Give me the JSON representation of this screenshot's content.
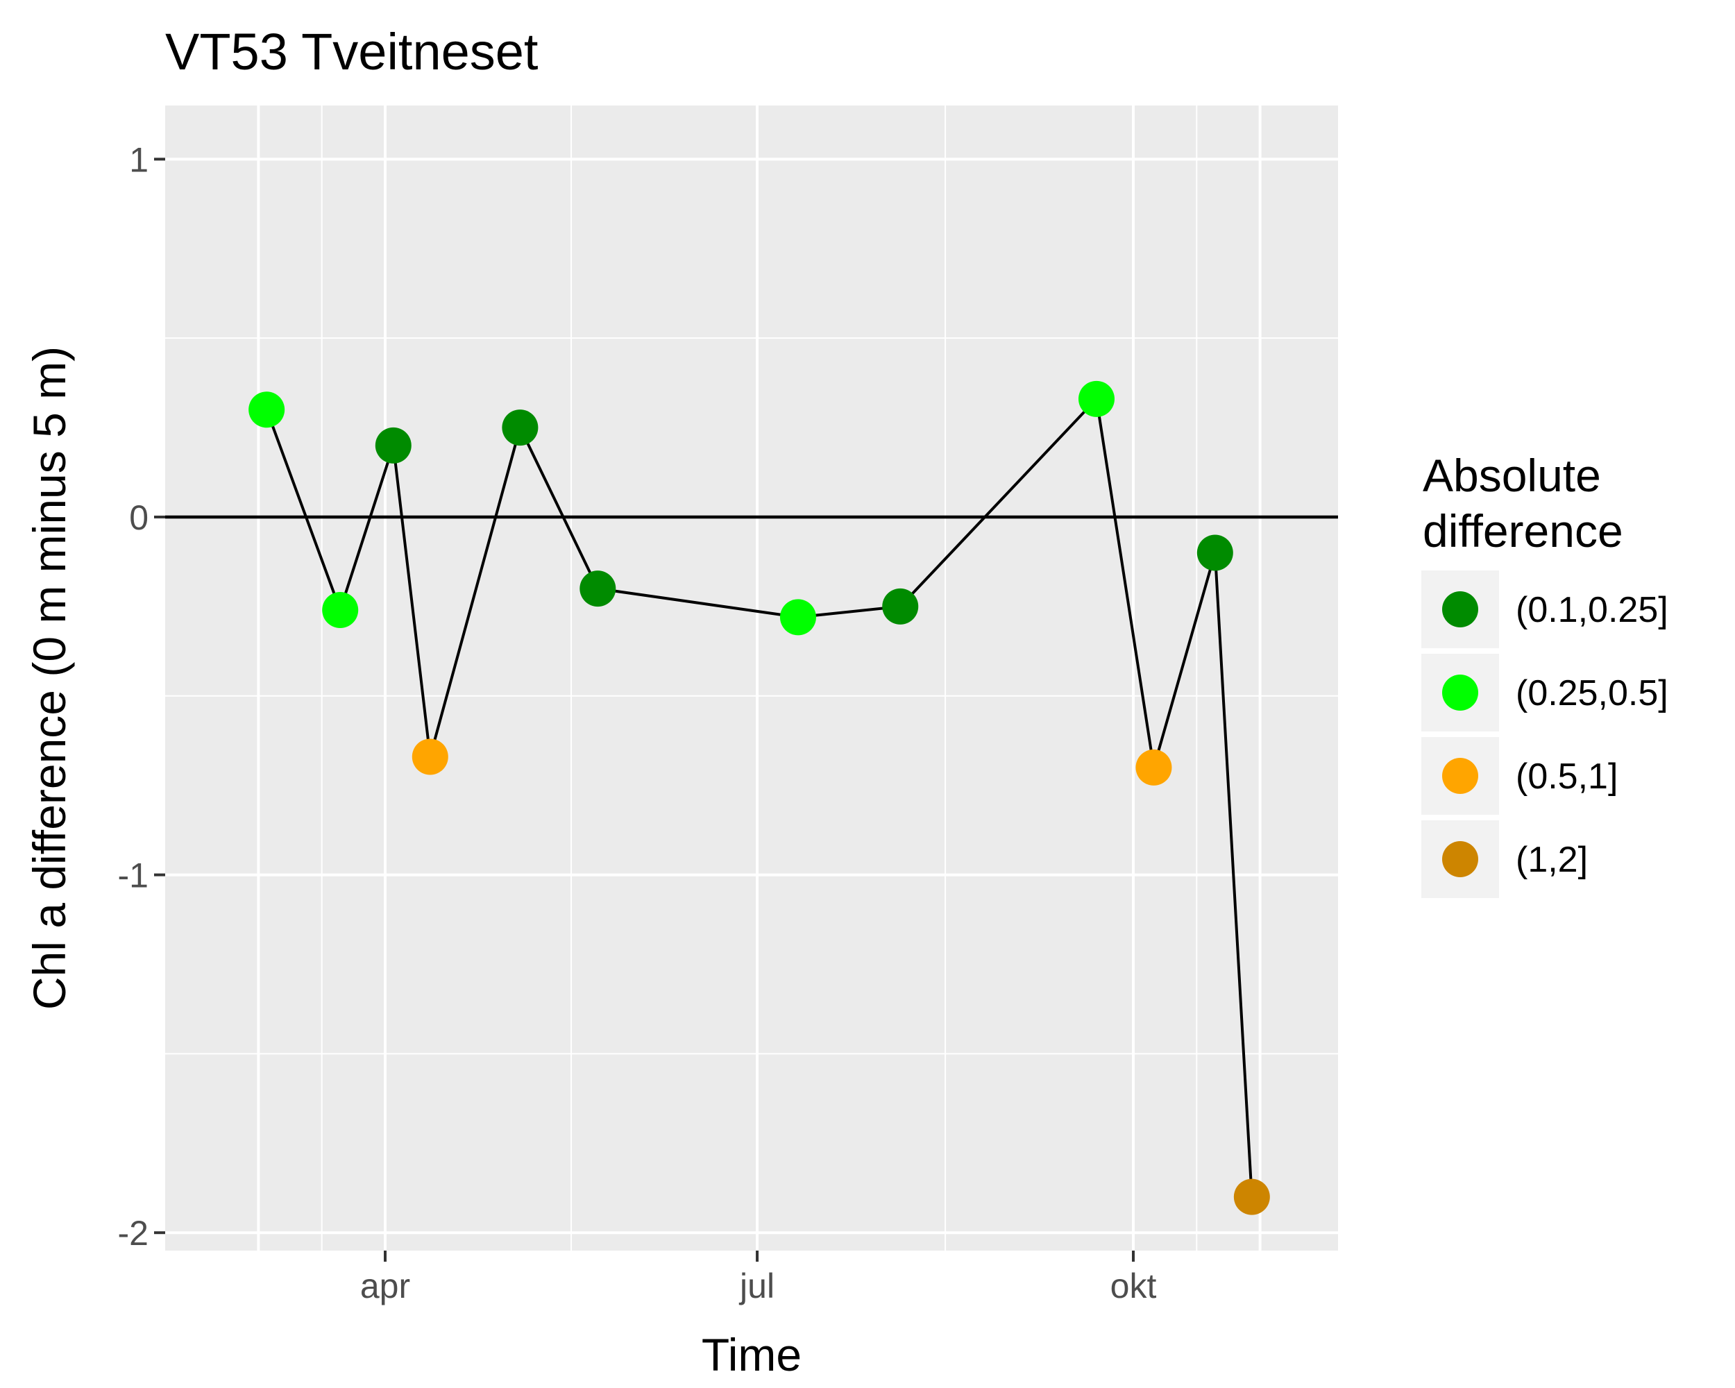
{
  "chart_data": {
    "type": "scatter",
    "title": "VT53 Tveitneset",
    "xlabel": "Time",
    "ylabel": "Chl a difference (0 m minus 5 m)",
    "x_ticks": [
      "apr",
      "jul",
      "okt"
    ],
    "x_tick_dates": [
      "2000-04-01",
      "2000-07-01",
      "2000-10-01"
    ],
    "ylim": [
      -2.05,
      1.15
    ],
    "y_ticks": [
      -2,
      -1,
      0,
      1
    ],
    "y_tick_labels": [
      "-2",
      "-1",
      "0",
      "1"
    ],
    "reference_line_y": 0,
    "grid": true,
    "connected": true,
    "legend": {
      "title_lines": [
        "Absolute",
        "difference"
      ],
      "position": "right",
      "entries": [
        {
          "label": "(0.1,0.25]",
          "color": "#008B00"
        },
        {
          "label": "(0.25,0.5]",
          "color": "#00FF00"
        },
        {
          "label": "(0.5,1]",
          "color": "#FFA500"
        },
        {
          "label": "(1,2]",
          "color": "#CD8500"
        }
      ]
    },
    "points": [
      {
        "date": "2000-03-03",
        "y": 0.3,
        "class": "(0.25,0.5]"
      },
      {
        "date": "2000-03-21",
        "y": -0.26,
        "class": "(0.25,0.5]"
      },
      {
        "date": "2000-04-03",
        "y": 0.2,
        "class": "(0.1,0.25]"
      },
      {
        "date": "2000-04-12",
        "y": -0.67,
        "class": "(0.5,1]"
      },
      {
        "date": "2000-05-04",
        "y": 0.25,
        "class": "(0.1,0.25]"
      },
      {
        "date": "2000-05-23",
        "y": -0.2,
        "class": "(0.1,0.25]"
      },
      {
        "date": "2000-07-11",
        "y": -0.28,
        "class": "(0.25,0.5]"
      },
      {
        "date": "2000-08-05",
        "y": -0.25,
        "class": "(0.1,0.25]"
      },
      {
        "date": "2000-09-22",
        "y": 0.33,
        "class": "(0.25,0.5]"
      },
      {
        "date": "2000-10-06",
        "y": -0.7,
        "class": "(0.5,1]"
      },
      {
        "date": "2000-10-21",
        "y": -0.1,
        "class": "(0.1,0.25]"
      },
      {
        "date": "2000-10-30",
        "y": -1.9,
        "class": "(1,2]"
      }
    ]
  }
}
